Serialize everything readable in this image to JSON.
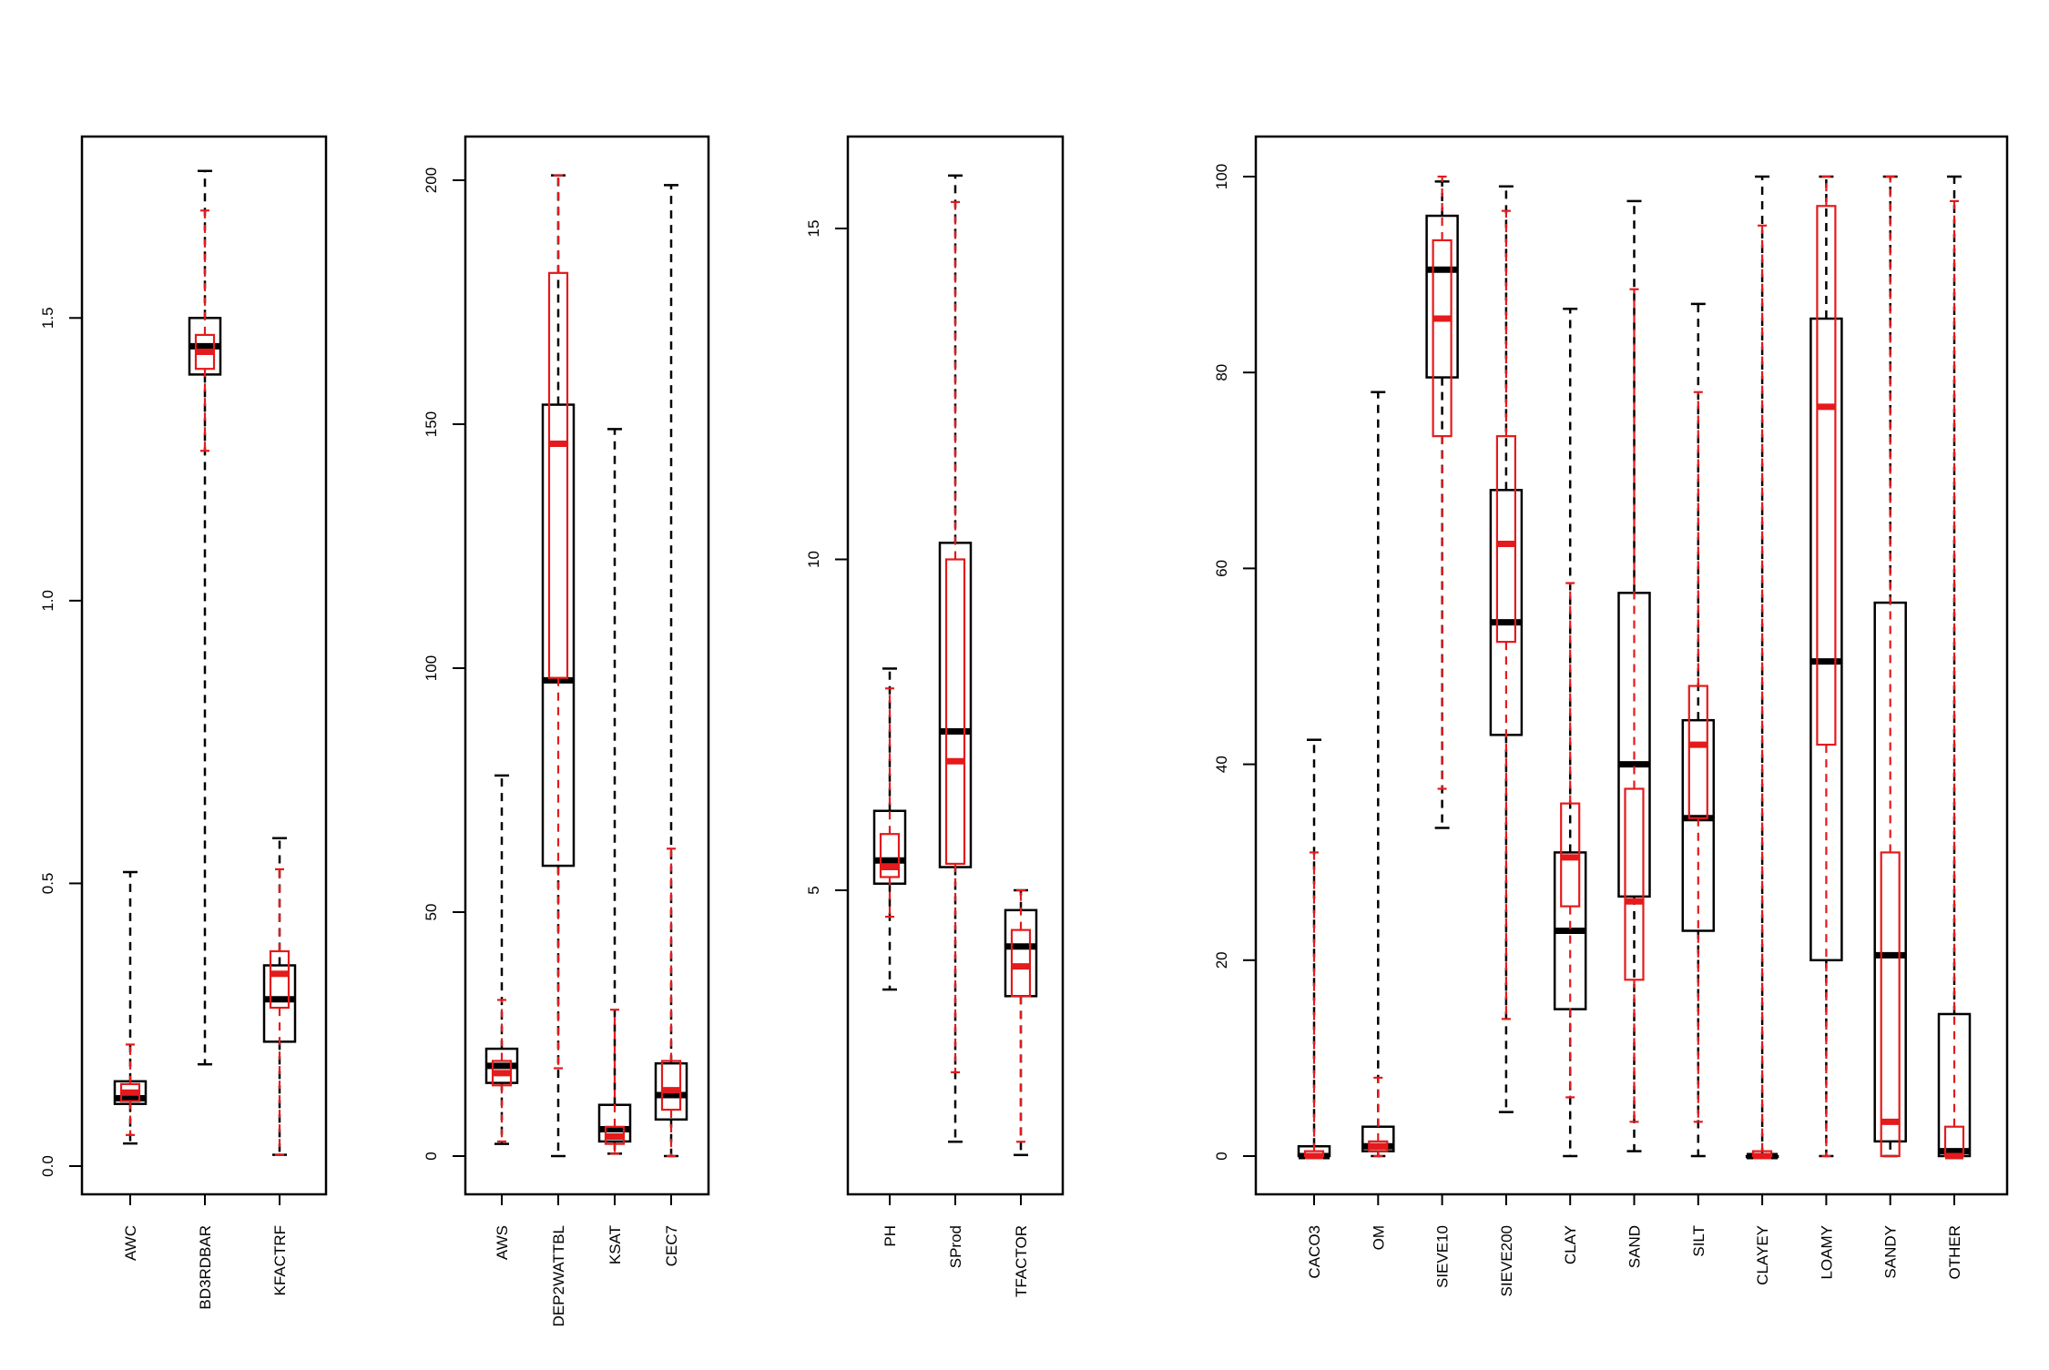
{
  "chart_data": [
    {
      "type": "boxplot",
      "ylim": [
        0,
        1.8
      ],
      "yticks": [
        0.0,
        0.5,
        1.0,
        1.5
      ],
      "ytick_labels": [
        "0.0",
        "0.5",
        "1.0",
        "1.5"
      ],
      "categories": [
        "AWC",
        "BD3RDBAR",
        "KFACTRF"
      ],
      "series": [
        {
          "color": "#000000",
          "boxes": [
            {
              "min": 0.04,
              "q1": 0.11,
              "median": 0.12,
              "q3": 0.15,
              "max": 0.52
            },
            {
              "min": 0.18,
              "q1": 1.4,
              "median": 1.45,
              "q3": 1.5,
              "max": 1.76
            },
            {
              "min": 0.02,
              "q1": 0.22,
              "median": 0.295,
              "q3": 0.355,
              "max": 0.58
            }
          ]
        },
        {
          "color": "#e41a1c",
          "boxes": [
            {
              "min": 0.055,
              "q1": 0.115,
              "median": 0.13,
              "q3": 0.145,
              "max": 0.215
            },
            {
              "min": 1.265,
              "q1": 1.41,
              "median": 1.44,
              "q3": 1.47,
              "max": 1.69
            },
            {
              "min": 0.02,
              "q1": 0.28,
              "median": 0.34,
              "q3": 0.38,
              "max": 0.525
            }
          ]
        }
      ]
    },
    {
      "type": "boxplot",
      "ylim": [
        0,
        200
      ],
      "yticks": [
        0,
        50,
        100,
        150,
        200
      ],
      "ytick_labels": [
        "0",
        "50",
        "100",
        "150",
        "200"
      ],
      "categories": [
        "AWS",
        "DEP2WATTBL",
        "KSAT",
        "CEC7"
      ],
      "series": [
        {
          "color": "#000000",
          "boxes": [
            {
              "min": 2.5,
              "q1": 15,
              "median": 18.5,
              "q3": 22,
              "max": 78
            },
            {
              "min": 0,
              "q1": 59.5,
              "median": 97.5,
              "q3": 154,
              "max": 201
            },
            {
              "min": 0.5,
              "q1": 3,
              "median": 5.5,
              "q3": 10.5,
              "max": 149
            },
            {
              "min": 0,
              "q1": 7.5,
              "median": 12.5,
              "q3": 19,
              "max": 199
            }
          ]
        },
        {
          "color": "#e41a1c",
          "boxes": [
            {
              "min": 3,
              "q1": 14.5,
              "median": 17,
              "q3": 19.5,
              "max": 32
            },
            {
              "min": 18,
              "q1": 98,
              "median": 146,
              "q3": 181,
              "max": 201
            },
            {
              "min": 0.5,
              "q1": 2.5,
              "median": 4,
              "q3": 6,
              "max": 30
            },
            {
              "min": 0,
              "q1": 9.5,
              "median": 13.5,
              "q3": 19.5,
              "max": 63
            }
          ]
        }
      ]
    },
    {
      "type": "boxplot",
      "ylim": [
        0,
        16
      ],
      "yticks": [
        5,
        10,
        15
      ],
      "ytick_labels": [
        "5",
        "10",
        "15"
      ],
      "categories": [
        "PH",
        "SProd",
        "TFACTOR"
      ],
      "series": [
        {
          "color": "#000000",
          "boxes": [
            {
              "min": 3.5,
              "q1": 5.1,
              "median": 5.45,
              "q3": 6.2,
              "max": 8.35
            },
            {
              "min": 1.2,
              "q1": 5.35,
              "median": 7.4,
              "q3": 10.25,
              "max": 15.8
            },
            {
              "min": 1.0,
              "q1": 3.4,
              "median": 4.15,
              "q3": 4.7,
              "max": 5.0
            }
          ]
        },
        {
          "color": "#e41a1c",
          "boxes": [
            {
              "min": 4.6,
              "q1": 5.2,
              "median": 5.35,
              "q3": 5.85,
              "max": 8.05
            },
            {
              "min": 2.25,
              "q1": 5.4,
              "median": 6.95,
              "q3": 10.0,
              "max": 15.4
            },
            {
              "min": 1.2,
              "q1": 3.4,
              "median": 3.85,
              "q3": 4.4,
              "max": 5.0
            }
          ]
        }
      ]
    },
    {
      "type": "boxplot",
      "ylim": [
        0,
        100
      ],
      "yticks": [
        0,
        20,
        40,
        60,
        80,
        100
      ],
      "ytick_labels": [
        "0",
        "20",
        "40",
        "60",
        "80",
        "100"
      ],
      "categories": [
        "CACO3",
        "OM",
        "SIEVE10",
        "SIEVE200",
        "CLAY",
        "SAND",
        "SILT",
        "CLAYEY",
        "LOAMY",
        "SANDY",
        "OTHER"
      ],
      "series": [
        {
          "color": "#000000",
          "boxes": [
            {
              "min": 0,
              "q1": 0,
              "median": 0,
              "q3": 1,
              "max": 42.5
            },
            {
              "min": 0,
              "q1": 0.5,
              "median": 1,
              "q3": 3,
              "max": 78
            },
            {
              "min": 33.5,
              "q1": 79.5,
              "median": 90.5,
              "q3": 96,
              "max": 99.5
            },
            {
              "min": 4.5,
              "q1": 43,
              "median": 54.5,
              "q3": 68,
              "max": 99
            },
            {
              "min": 0,
              "q1": 15,
              "median": 23,
              "q3": 31,
              "max": 86.5
            },
            {
              "min": 0.5,
              "q1": 26.5,
              "median": 40,
              "q3": 57.5,
              "max": 97.5
            },
            {
              "min": 0,
              "q1": 23,
              "median": 34.5,
              "q3": 44.5,
              "max": 87
            },
            {
              "min": 0,
              "q1": 0,
              "median": 0,
              "q3": 0,
              "max": 100
            },
            {
              "min": 0,
              "q1": 20,
              "median": 50.5,
              "q3": 85.5,
              "max": 100
            },
            {
              "min": 0,
              "q1": 1.5,
              "median": 20.5,
              "q3": 56.5,
              "max": 100
            },
            {
              "min": 0,
              "q1": 0,
              "median": 0.5,
              "q3": 14.5,
              "max": 100
            }
          ]
        },
        {
          "color": "#e41a1c",
          "boxes": [
            {
              "min": 0,
              "q1": 0,
              "median": 0,
              "q3": 0.5,
              "max": 31
            },
            {
              "min": 0,
              "q1": 0.5,
              "median": 1,
              "q3": 1.5,
              "max": 8
            },
            {
              "min": 37.5,
              "q1": 73.5,
              "median": 85.5,
              "q3": 93.5,
              "max": 100
            },
            {
              "min": 14,
              "q1": 52.5,
              "median": 62.5,
              "q3": 73.5,
              "max": 96.5
            },
            {
              "min": 6,
              "q1": 25.5,
              "median": 30.5,
              "q3": 36,
              "max": 58.5
            },
            {
              "min": 3.5,
              "q1": 18,
              "median": 26,
              "q3": 37.5,
              "max": 88.5
            },
            {
              "min": 3.5,
              "q1": 34.5,
              "median": 42,
              "q3": 48,
              "max": 78
            },
            {
              "min": 0,
              "q1": 0,
              "median": 0,
              "q3": 0.5,
              "max": 95
            },
            {
              "min": 0,
              "q1": 42,
              "median": 76.5,
              "q3": 97,
              "max": 100
            },
            {
              "min": 0,
              "q1": 0,
              "median": 3.5,
              "q3": 31,
              "max": 100
            },
            {
              "min": 0,
              "q1": 0,
              "median": 0,
              "q3": 3,
              "max": 97.5
            }
          ]
        }
      ]
    }
  ]
}
